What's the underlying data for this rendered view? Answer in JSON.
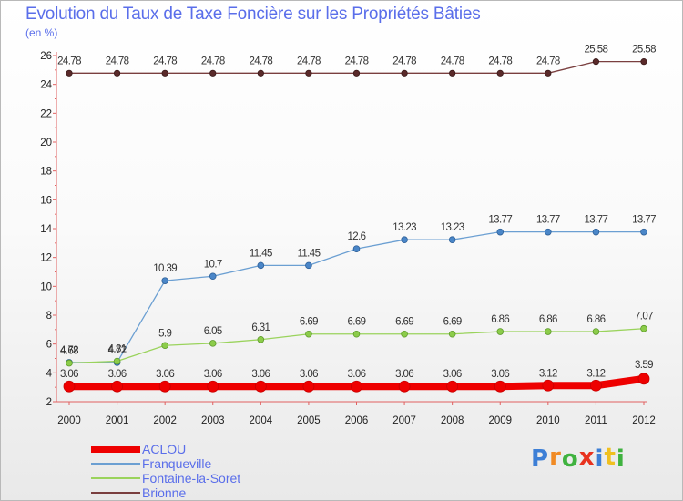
{
  "chart_data": {
    "type": "line",
    "title": "Evolution du Taux de Taxe Foncière sur les Propriétés Bâties",
    "ylabel": "(en %)",
    "xlabel": "",
    "ylim": [
      2,
      26
    ],
    "yticks": [
      2,
      4,
      6,
      8,
      10,
      12,
      14,
      16,
      18,
      20,
      22,
      24,
      26
    ],
    "categories": [
      "2000",
      "2001",
      "2002",
      "2003",
      "2004",
      "2005",
      "2006",
      "2007",
      "2008",
      "2009",
      "2010",
      "2011",
      "2012"
    ],
    "series": [
      {
        "name": "ACLOU",
        "color": "#ee0000",
        "values": [
          3.06,
          3.06,
          3.06,
          3.06,
          3.06,
          3.06,
          3.06,
          3.06,
          3.06,
          3.06,
          3.12,
          3.12,
          3.59
        ],
        "labels": [
          "3.06",
          "3.06",
          "3.06",
          "3.06",
          "3.06",
          "3.06",
          "3.06",
          "3.06",
          "3.06",
          "3.06",
          "3.12",
          "3.12",
          "3.59"
        ]
      },
      {
        "name": "Franqueville",
        "color": "#6b9fd2",
        "values": [
          4.72,
          4.72,
          10.39,
          10.7,
          11.45,
          11.45,
          12.6,
          13.23,
          13.23,
          13.77,
          13.77,
          13.77,
          13.77
        ],
        "labels": [
          "4.72",
          "4.72",
          "10.39",
          "10.7",
          "11.45",
          "11.45",
          "12.6",
          "13.23",
          "13.23",
          "13.77",
          "13.77",
          "13.77",
          "13.77"
        ]
      },
      {
        "name": "Fontaine-la-Soret",
        "color": "#9ad35c",
        "values": [
          4.68,
          4.81,
          5.9,
          6.05,
          6.31,
          6.69,
          6.69,
          6.69,
          6.69,
          6.86,
          6.86,
          6.86,
          7.07
        ],
        "labels": [
          "4.68",
          "4.81",
          "5.9",
          "6.05",
          "6.31",
          "6.69",
          "6.69",
          "6.69",
          "6.69",
          "6.86",
          "6.86",
          "6.86",
          "7.07"
        ]
      },
      {
        "name": "Brionne",
        "color": "#7a3f3f",
        "values": [
          24.78,
          24.78,
          24.78,
          24.78,
          24.78,
          24.78,
          24.78,
          24.78,
          24.78,
          24.78,
          24.78,
          25.58,
          25.58
        ],
        "labels": [
          "24.78",
          "24.78",
          "24.78",
          "24.78",
          "24.78",
          "24.78",
          "24.78",
          "24.78",
          "24.78",
          "24.78",
          "24.78",
          "25.58",
          "25.58"
        ]
      }
    ],
    "legend": [
      "ACLOU",
      "Franqueville",
      "Fontaine-la-Soret",
      "Brionne"
    ]
  },
  "logo": {
    "letters": [
      "P",
      "r",
      "o",
      "x",
      "i",
      "t",
      "i"
    ],
    "colors": [
      "#3d7fd6",
      "#f08a24",
      "#3fb23f",
      "#e8321e",
      "#3d7fd6",
      "#f0c020",
      "#3fb23f"
    ]
  }
}
